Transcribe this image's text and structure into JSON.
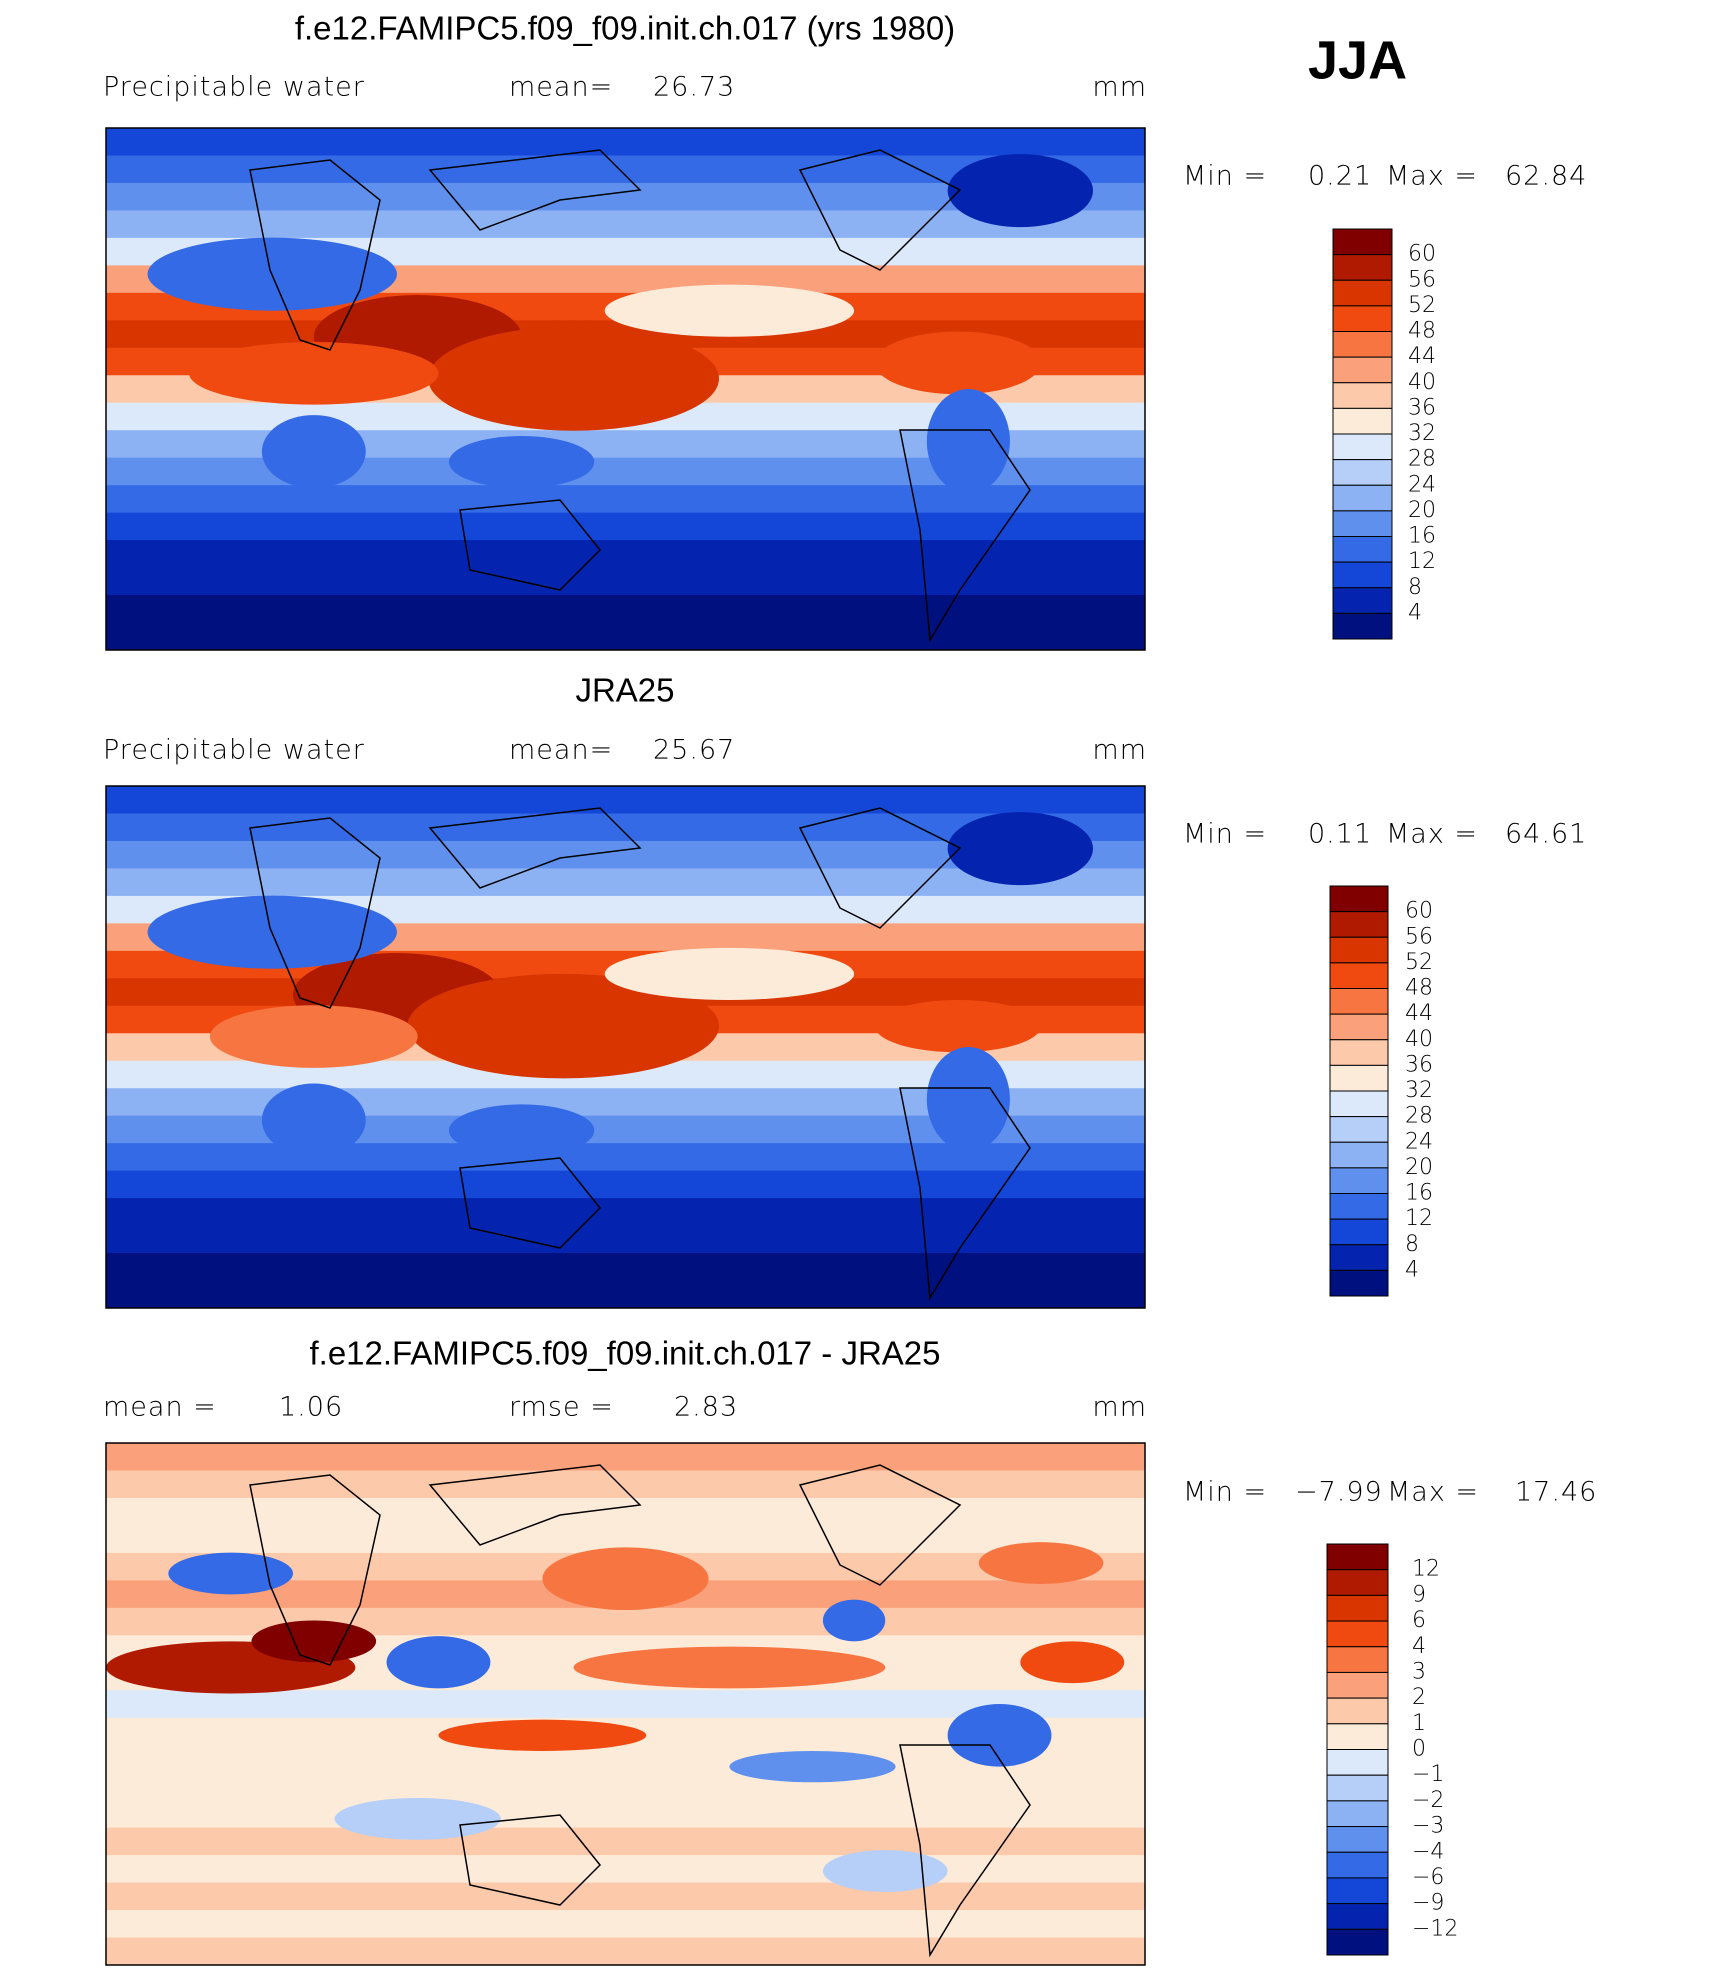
{
  "season": "JJA",
  "panels": [
    {
      "title": "f.e12.FAMIPC5.f09_f09.init.ch.017 (yrs 1980)",
      "left_label": "Precipitable water",
      "stat_label": "mean=",
      "stat_value": "26.73",
      "units": "mm",
      "min_label": "Min =",
      "min": "0.21",
      "max_label": "Max =",
      "max": "62.84",
      "colorbar": {
        "labels": [
          "60",
          "56",
          "52",
          "48",
          "44",
          "40",
          "36",
          "32",
          "28",
          "24",
          "20",
          "16",
          "12",
          "8",
          "4"
        ],
        "colors": [
          "#800000",
          "#b01a00",
          "#d83500",
          "#f04a10",
          "#f77540",
          "#faa07a",
          "#fcc9ab",
          "#fdebd9",
          "#dce9fb",
          "#b5cff8",
          "#8db2f4",
          "#6090ee",
          "#346ae6",
          "#1446d8",
          "#0424b0",
          "#00107f"
        ]
      }
    },
    {
      "title": "JRA25",
      "left_label": "Precipitable water",
      "stat_label": "mean=",
      "stat_value": "25.67",
      "units": "mm",
      "min_label": "Min =",
      "min": "0.11",
      "max_label": "Max =",
      "max": "64.61",
      "colorbar": {
        "labels": [
          "60",
          "56",
          "52",
          "48",
          "44",
          "40",
          "36",
          "32",
          "28",
          "24",
          "20",
          "16",
          "12",
          "8",
          "4"
        ],
        "colors": [
          "#800000",
          "#b01a00",
          "#d83500",
          "#f04a10",
          "#f77540",
          "#faa07a",
          "#fcc9ab",
          "#fdebd9",
          "#dce9fb",
          "#b5cff8",
          "#8db2f4",
          "#6090ee",
          "#346ae6",
          "#1446d8",
          "#0424b0",
          "#00107f"
        ]
      }
    },
    {
      "title": "f.e12.FAMIPC5.f09_f09.init.ch.017 - JRA25",
      "left_label": "mean =",
      "left_value": "1.06",
      "stat_label": "rmse =",
      "stat_value": "2.83",
      "units": "mm",
      "min_label": "Min =",
      "min": "−7.99",
      "max_label": "Max =",
      "max": "17.46",
      "colorbar": {
        "labels": [
          "12",
          "9",
          "6",
          "4",
          "3",
          "2",
          "1",
          "0",
          "−1",
          "−2",
          "−3",
          "−4",
          "−6",
          "−9",
          "−12"
        ],
        "colors": [
          "#800000",
          "#b01a00",
          "#d83500",
          "#f04a10",
          "#f77540",
          "#faa07a",
          "#fcc9ab",
          "#fdebd9",
          "#dce9fb",
          "#b5cff8",
          "#8db2f4",
          "#6090ee",
          "#346ae6",
          "#1446d8",
          "#0424b0",
          "#00107f"
        ]
      }
    }
  ]
}
